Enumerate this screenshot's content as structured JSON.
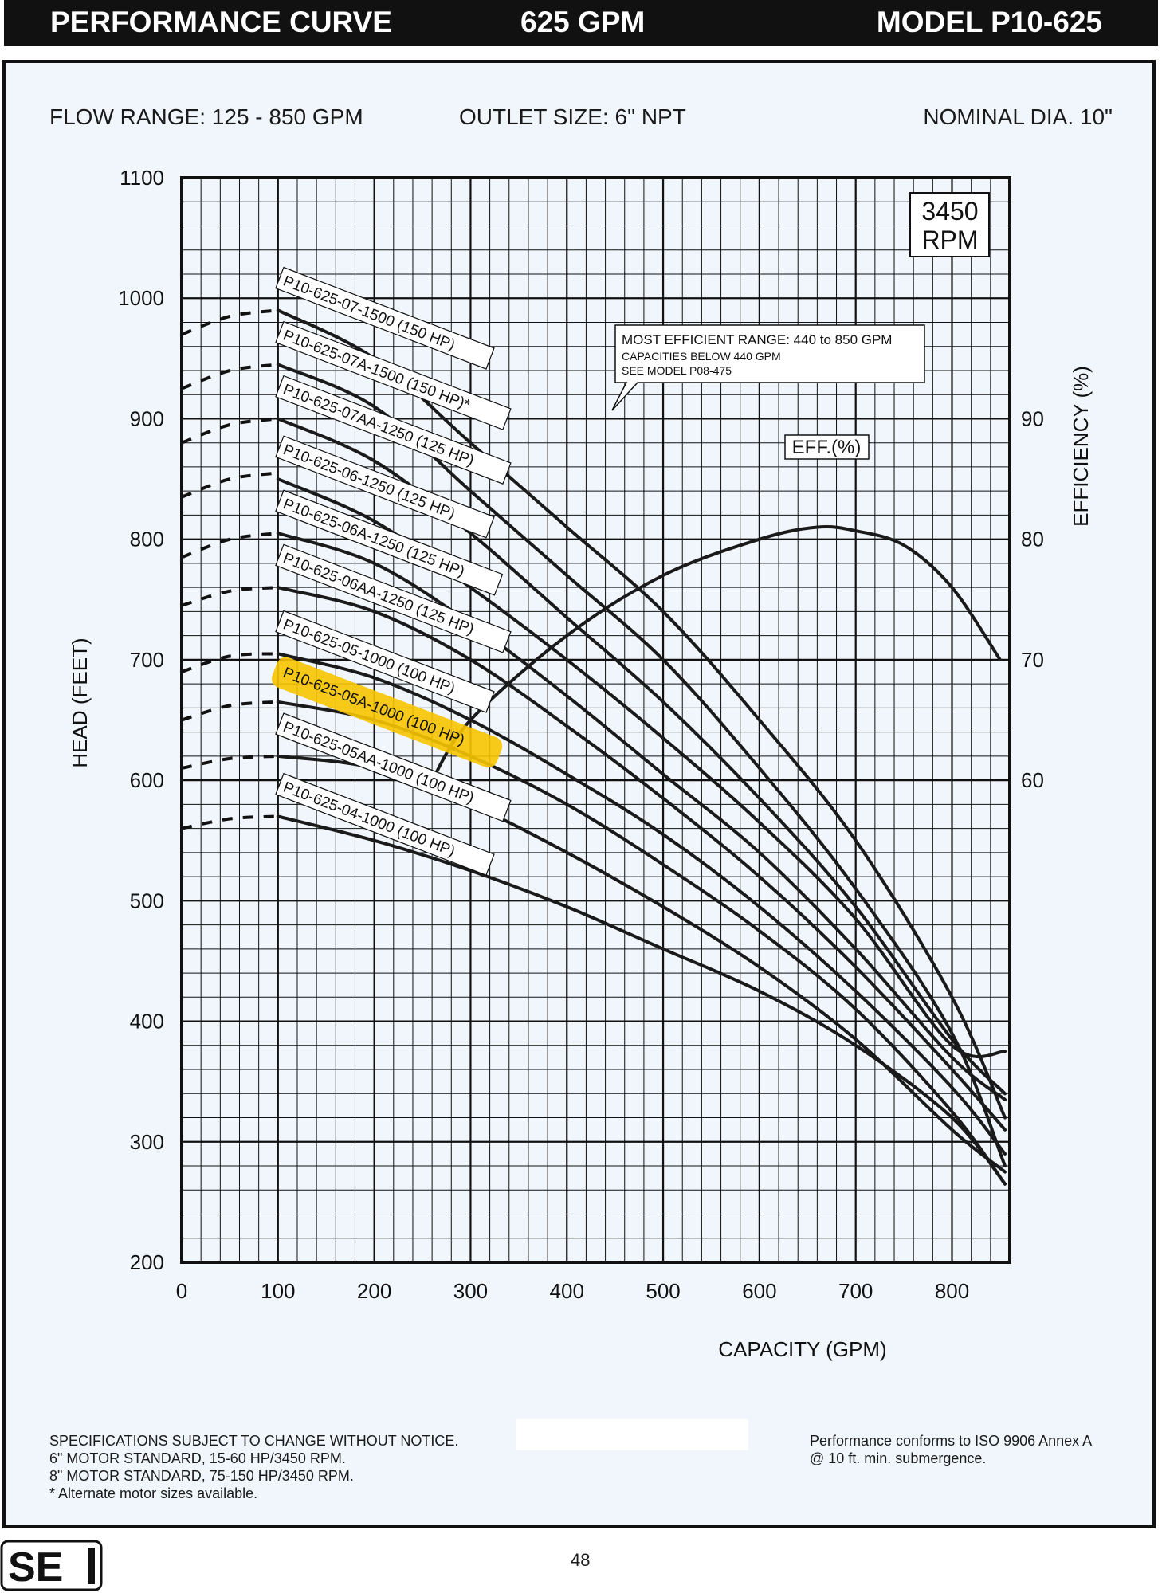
{
  "header": {
    "title": "PERFORMANCE CURVE",
    "gpm": "625 GPM",
    "model": "MODEL  P10-625"
  },
  "specs": {
    "flow_range": "FLOW RANGE: 125 - 850 GPM",
    "outlet_size": "OUTLET SIZE: 6\" NPT",
    "nominal_dia": "NOMINAL DIA. 10\""
  },
  "rpm_box": [
    "3450",
    "RPM"
  ],
  "callout": {
    "line1": "MOST EFFICIENT RANGE: 440 to 850 GPM",
    "line2": "CAPACITIES BELOW 440 GPM",
    "line3": "SEE  MODEL  P08-475"
  },
  "eff_label": "EFF.(%)",
  "highlight_color": "#f7c400",
  "footer": {
    "left": [
      "SPECIFICATIONS SUBJECT TO CHANGE WITHOUT NOTICE.",
      "6\" MOTOR STANDARD, 15-60 HP/3450 RPM.",
      "8\" MOTOR STANDARD, 75-150 HP/3450 RPM.",
      "* Alternate motor sizes available."
    ],
    "right": [
      "Performance conforms to ISO 9906 Annex A",
      "@ 10 ft. min. submergence."
    ]
  },
  "page_number": "48",
  "logo_text": "SE",
  "chart_data": {
    "type": "line",
    "xlabel": "CAPACITY (GPM)",
    "ylabel": "HEAD (FEET)",
    "y2label": "EFFICIENCY (%)",
    "xlim": [
      0,
      860
    ],
    "ylim": [
      200,
      1100
    ],
    "y2lim": [
      20,
      110
    ],
    "xticks": [
      0,
      100,
      200,
      300,
      400,
      500,
      600,
      700,
      800
    ],
    "yticks": [
      200,
      300,
      400,
      500,
      600,
      700,
      800,
      900,
      1000,
      1100
    ],
    "y2ticks": [
      60,
      70,
      80,
      90
    ],
    "grid": true,
    "series": [
      {
        "name": "P10-625-07-1500 (150 HP)",
        "highlight": false,
        "dashed": [
          [
            0,
            970
          ],
          [
            50,
            985
          ],
          [
            100,
            990
          ]
        ],
        "x": [
          100,
          200,
          300,
          400,
          500,
          600,
          700,
          800,
          855
        ],
        "y": [
          990,
          950,
          880,
          810,
          740,
          650,
          550,
          420,
          320
        ]
      },
      {
        "name": "P10-625-07A-1500 (150 HP)*",
        "highlight": false,
        "dashed": [
          [
            0,
            925
          ],
          [
            50,
            940
          ],
          [
            100,
            945
          ]
        ],
        "x": [
          100,
          200,
          300,
          400,
          500,
          600,
          700,
          800,
          855
        ],
        "y": [
          945,
          910,
          840,
          770,
          700,
          610,
          510,
          390,
          280
        ]
      },
      {
        "name": "P10-625-07AA-1250 (125 HP)",
        "highlight": false,
        "dashed": [
          [
            0,
            880
          ],
          [
            50,
            895
          ],
          [
            100,
            900
          ]
        ],
        "x": [
          100,
          200,
          300,
          400,
          500,
          600,
          700,
          800,
          855
        ],
        "y": [
          900,
          865,
          805,
          735,
          665,
          585,
          495,
          385,
          340
        ]
      },
      {
        "name": "P10-625-06-1250 (125 HP)",
        "highlight": false,
        "dashed": [
          [
            0,
            835
          ],
          [
            50,
            850
          ],
          [
            100,
            855
          ]
        ],
        "x": [
          100,
          200,
          300,
          400,
          500,
          600,
          700,
          800,
          855
        ],
        "y": [
          850,
          815,
          760,
          700,
          635,
          565,
          485,
          380,
          375
        ]
      },
      {
        "name": "P10-625-06A-1250 (125 HP)",
        "highlight": false,
        "dashed": [
          [
            0,
            785
          ],
          [
            50,
            800
          ],
          [
            100,
            805
          ]
        ],
        "x": [
          100,
          200,
          300,
          400,
          500,
          600,
          700,
          800,
          855
        ],
        "y": [
          805,
          780,
          730,
          670,
          605,
          540,
          460,
          370,
          335
        ]
      },
      {
        "name": "P10-625-06AA-1250 (125 HP)",
        "highlight": false,
        "dashed": [
          [
            0,
            745
          ],
          [
            50,
            757
          ],
          [
            100,
            760
          ]
        ],
        "x": [
          100,
          200,
          300,
          400,
          500,
          600,
          700,
          800,
          855
        ],
        "y": [
          760,
          740,
          700,
          645,
          585,
          520,
          445,
          360,
          310
        ]
      },
      {
        "name": "P10-625-05-1000 (100 HP)",
        "highlight": false,
        "dashed": [
          [
            0,
            690
          ],
          [
            50,
            703
          ],
          [
            100,
            705
          ]
        ],
        "x": [
          100,
          200,
          300,
          400,
          500,
          600,
          700,
          800,
          855
        ],
        "y": [
          705,
          685,
          650,
          605,
          555,
          495,
          425,
          345,
          290
        ]
      },
      {
        "name": "P10-625-05A-1000 (100 HP)",
        "highlight": true,
        "dashed": [
          [
            0,
            650
          ],
          [
            50,
            662
          ],
          [
            100,
            665
          ]
        ],
        "x": [
          100,
          200,
          300,
          400,
          500,
          600,
          700,
          800,
          855
        ],
        "y": [
          665,
          650,
          620,
          580,
          530,
          475,
          410,
          325,
          265
        ]
      },
      {
        "name": "P10-625-05AA-1000 (100 HP)",
        "highlight": false,
        "dashed": [
          [
            0,
            610
          ],
          [
            50,
            618
          ],
          [
            100,
            620
          ]
        ],
        "x": [
          100,
          200,
          300,
          400,
          500,
          600,
          700,
          800,
          855
        ],
        "y": [
          620,
          610,
          580,
          540,
          495,
          445,
          385,
          310,
          275
        ]
      },
      {
        "name": "P10-625-04-1000 (100 HP)",
        "highlight": false,
        "dashed": [
          [
            0,
            560
          ],
          [
            50,
            568
          ],
          [
            100,
            570
          ]
        ],
        "x": [
          100,
          200,
          300,
          400,
          500,
          600,
          700,
          800,
          855
        ],
        "y": [
          570,
          550,
          525,
          495,
          460,
          425,
          380,
          320,
          265
        ]
      },
      {
        "name": "EFF.(%)",
        "axis": "right",
        "highlight": false,
        "x": [
          260,
          300,
          400,
          500,
          600,
          660,
          700,
          750,
          800,
          850
        ],
        "y": [
          60,
          65,
          72,
          77,
          80,
          81,
          80.7,
          79.5,
          76,
          70
        ]
      }
    ]
  }
}
